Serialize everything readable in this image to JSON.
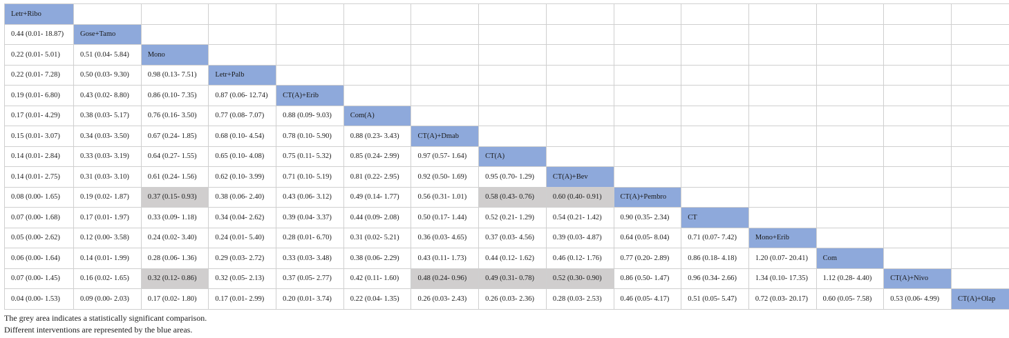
{
  "table": {
    "interventions": [
      "Letr+Ribo",
      "Gose+Tamo",
      "Mono",
      "Letr+Palb",
      "CT(A)+Erib",
      "Com(A)",
      "CT(A)+Dmab",
      "CT(A)",
      "CT(A)+Bev",
      "CT(A)+Pembro",
      "CT",
      "Mono+Erib",
      "Com",
      "CT(A)+Nivo",
      "CT(A)+Olap"
    ],
    "rows": [
      [],
      [
        {
          "v": "0.44 (0.01- 18.87)"
        }
      ],
      [
        {
          "v": "0.22 (0.01- 5.01)"
        },
        {
          "v": "0.51 (0.04- 5.84)"
        }
      ],
      [
        {
          "v": "0.22 (0.01- 7.28)"
        },
        {
          "v": "0.50 (0.03- 9.30)"
        },
        {
          "v": "0.98 (0.13- 7.51)"
        }
      ],
      [
        {
          "v": "0.19 (0.01- 6.80)"
        },
        {
          "v": "0.43 (0.02- 8.80)"
        },
        {
          "v": "0.86 (0.10- 7.35)"
        },
        {
          "v": "0.87 (0.06- 12.74)"
        }
      ],
      [
        {
          "v": "0.17 (0.01- 4.29)"
        },
        {
          "v": "0.38 (0.03- 5.17)"
        },
        {
          "v": "0.76 (0.16- 3.50)"
        },
        {
          "v": "0.77 (0.08- 7.07)"
        },
        {
          "v": "0.88 (0.09- 9.03)"
        }
      ],
      [
        {
          "v": "0.15 (0.01- 3.07)"
        },
        {
          "v": "0.34 (0.03- 3.50)"
        },
        {
          "v": "0.67 (0.24- 1.85)"
        },
        {
          "v": "0.68 (0.10- 4.54)"
        },
        {
          "v": "0.78 (0.10- 5.90)"
        },
        {
          "v": "0.88 (0.23- 3.43)"
        }
      ],
      [
        {
          "v": "0.14 (0.01- 2.84)"
        },
        {
          "v": "0.33 (0.03- 3.19)"
        },
        {
          "v": "0.64 (0.27- 1.55)"
        },
        {
          "v": "0.65 (0.10- 4.08)"
        },
        {
          "v": "0.75 (0.11- 5.32)"
        },
        {
          "v": "0.85 (0.24- 2.99)"
        },
        {
          "v": "0.97 (0.57- 1.64)"
        }
      ],
      [
        {
          "v": "0.14 (0.01- 2.75)"
        },
        {
          "v": "0.31 (0.03- 3.10)"
        },
        {
          "v": "0.61 (0.24- 1.56)"
        },
        {
          "v": "0.62 (0.10- 3.99)"
        },
        {
          "v": "0.71 (0.10- 5.19)"
        },
        {
          "v": "0.81 (0.22- 2.95)"
        },
        {
          "v": "0.92 (0.50- 1.69)"
        },
        {
          "v": "0.95 (0.70- 1.29)"
        }
      ],
      [
        {
          "v": "0.08 (0.00- 1.65)"
        },
        {
          "v": "0.19 (0.02- 1.87)"
        },
        {
          "v": "0.37 (0.15- 0.93)",
          "sig": true
        },
        {
          "v": "0.38 (0.06- 2.40)"
        },
        {
          "v": "0.43 (0.06- 3.12)"
        },
        {
          "v": "0.49 (0.14- 1.77)"
        },
        {
          "v": "0.56 (0.31- 1.01)"
        },
        {
          "v": "0.58 (0.43- 0.76)",
          "sig": true
        },
        {
          "v": "0.60 (0.40- 0.91)",
          "sig": true
        }
      ],
      [
        {
          "v": "0.07 (0.00- 1.68)"
        },
        {
          "v": "0.17 (0.01- 1.97)"
        },
        {
          "v": "0.33 (0.09- 1.18)"
        },
        {
          "v": "0.34 (0.04- 2.62)"
        },
        {
          "v": "0.39 (0.04- 3.37)"
        },
        {
          "v": "0.44 (0.09- 2.08)"
        },
        {
          "v": "0.50 (0.17- 1.44)"
        },
        {
          "v": "0.52 (0.21- 1.29)"
        },
        {
          "v": "0.54 (0.21- 1.42)"
        },
        {
          "v": "0.90 (0.35- 2.34)"
        }
      ],
      [
        {
          "v": "0.05 (0.00- 2.62)"
        },
        {
          "v": "0.12 (0.00- 3.58)"
        },
        {
          "v": "0.24 (0.02- 3.40)"
        },
        {
          "v": "0.24 (0.01- 5.40)"
        },
        {
          "v": "0.28 (0.01- 6.70)"
        },
        {
          "v": "0.31 (0.02- 5.21)"
        },
        {
          "v": "0.36 (0.03- 4.65)"
        },
        {
          "v": "0.37 (0.03- 4.56)"
        },
        {
          "v": "0.39 (0.03- 4.87)"
        },
        {
          "v": "0.64 (0.05- 8.04)"
        },
        {
          "v": "0.71 (0.07- 7.42)"
        }
      ],
      [
        {
          "v": "0.06 (0.00- 1.64)"
        },
        {
          "v": "0.14 (0.01- 1.99)"
        },
        {
          "v": "0.28 (0.06- 1.36)"
        },
        {
          "v": "0.29 (0.03- 2.72)"
        },
        {
          "v": "0.33 (0.03- 3.48)"
        },
        {
          "v": "0.38 (0.06- 2.29)"
        },
        {
          "v": "0.43 (0.11- 1.73)"
        },
        {
          "v": "0.44 (0.12- 1.62)"
        },
        {
          "v": "0.46 (0.12- 1.76)"
        },
        {
          "v": "0.77 (0.20- 2.89)"
        },
        {
          "v": "0.86 (0.18- 4.18)"
        },
        {
          "v": "1.20 (0.07- 20.41)"
        }
      ],
      [
        {
          "v": "0.07 (0.00- 1.45)"
        },
        {
          "v": "0.16 (0.02- 1.65)"
        },
        {
          "v": "0.32 (0.12- 0.86)",
          "sig": true
        },
        {
          "v": "0.32 (0.05- 2.13)"
        },
        {
          "v": "0.37 (0.05- 2.77)"
        },
        {
          "v": "0.42 (0.11- 1.60)"
        },
        {
          "v": "0.48 (0.24- 0.96)",
          "sig": true
        },
        {
          "v": "0.49 (0.31- 0.78)",
          "sig": true
        },
        {
          "v": "0.52 (0.30- 0.90)",
          "sig": true
        },
        {
          "v": "0.86 (0.50- 1.47)"
        },
        {
          "v": "0.96 (0.34- 2.66)"
        },
        {
          "v": "1.34 (0.10- 17.35)"
        },
        {
          "v": "1.12 (0.28- 4.40)"
        }
      ],
      [
        {
          "v": "0.04 (0.00- 1.53)"
        },
        {
          "v": "0.09 (0.00- 2.03)"
        },
        {
          "v": "0.17 (0.02- 1.80)"
        },
        {
          "v": "0.17 (0.01- 2.99)"
        },
        {
          "v": "0.20 (0.01- 3.74)"
        },
        {
          "v": "0.22 (0.04- 1.35)"
        },
        {
          "v": "0.26 (0.03- 2.43)"
        },
        {
          "v": "0.26 (0.03- 2.36)"
        },
        {
          "v": "0.28 (0.03- 2.53)"
        },
        {
          "v": "0.46 (0.05- 4.17)"
        },
        {
          "v": "0.51 (0.05- 5.47)"
        },
        {
          "v": "0.72 (0.03- 20.17)"
        },
        {
          "v": "0.60 (0.05- 7.58)"
        },
        {
          "v": "0.53 (0.06- 4.99)"
        }
      ]
    ],
    "colors": {
      "intervention": "#8ea9db",
      "significant": "#d0cece",
      "border": "#cfcfcf"
    }
  },
  "notes": {
    "grey": "The grey area indicates a statistically significant comparison.",
    "blue": "Different interventions are represented by the blue areas."
  }
}
